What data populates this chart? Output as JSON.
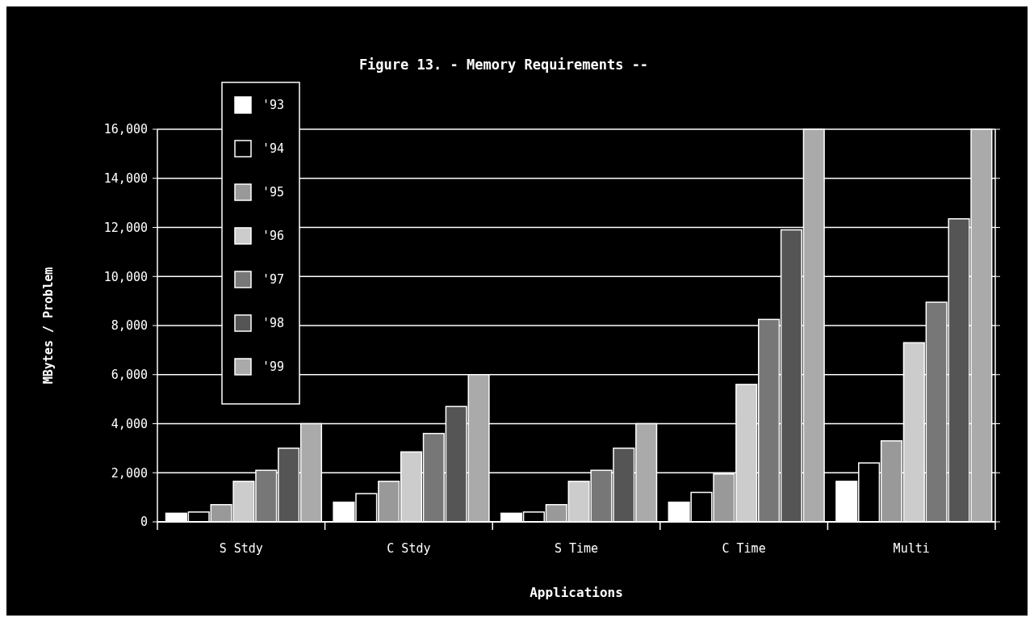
{
  "chart_data": {
    "type": "bar",
    "title": "Figure 13. - Memory Requirements  --",
    "xlabel": "Applications",
    "ylabel": "MBytes / Problem",
    "categories": [
      "S Stdy",
      "C Stdy",
      "S Time",
      "C Time",
      "Multi"
    ],
    "series": [
      {
        "name": "'93",
        "color": "#ffffff",
        "values": [
          350,
          800,
          350,
          800,
          1650
        ]
      },
      {
        "name": "'94",
        "color": "#000000",
        "values": [
          400,
          1150,
          400,
          1200,
          2400
        ]
      },
      {
        "name": "'95",
        "color": "#999999",
        "values": [
          700,
          1650,
          700,
          1950,
          3300
        ]
      },
      {
        "name": "'96",
        "color": "#cccccc",
        "values": [
          1650,
          2850,
          1650,
          5600,
          7300
        ]
      },
      {
        "name": "'97",
        "color": "#777777",
        "values": [
          2100,
          3600,
          2100,
          8250,
          8950
        ]
      },
      {
        "name": "'98",
        "color": "#555555",
        "values": [
          3000,
          4700,
          3000,
          11900,
          12350
        ]
      },
      {
        "name": "'99",
        "color": "#aaaaaa",
        "values": [
          4000,
          6000,
          4000,
          16000,
          16000
        ]
      }
    ],
    "ylim": [
      0,
      16000
    ],
    "yticks": [
      {
        "value": 0,
        "label": "0"
      },
      {
        "value": 2000,
        "label": "2,000"
      },
      {
        "value": 4000,
        "label": "4,000"
      },
      {
        "value": 6000,
        "label": "6,000"
      },
      {
        "value": 8000,
        "label": "8,000"
      },
      {
        "value": 10000,
        "label": "10,000"
      },
      {
        "value": 12000,
        "label": "12,000"
      },
      {
        "value": 14000,
        "label": "14,000"
      },
      {
        "value": 16000,
        "label": "16,000"
      }
    ],
    "grid": "y",
    "legend": "top left"
  }
}
